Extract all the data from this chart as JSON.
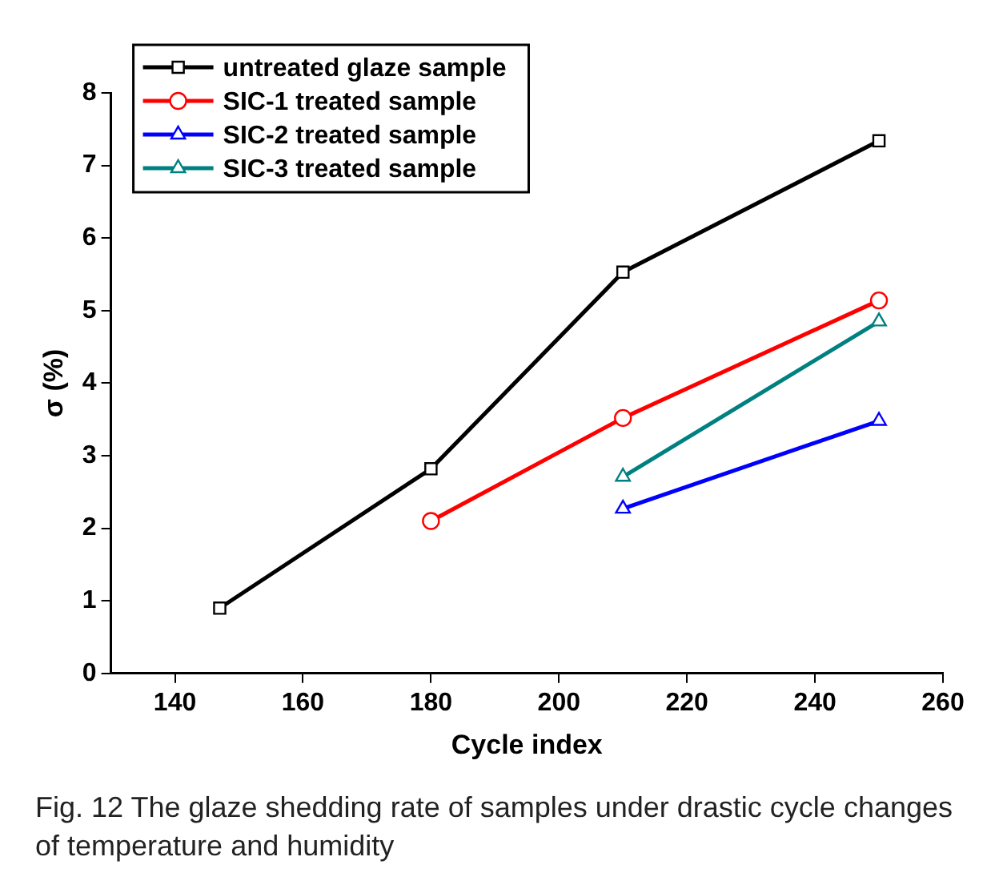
{
  "chart_data": {
    "type": "line",
    "xlabel": "Cycle index",
    "ylabel": "σ (%)",
    "xlim": [
      130,
      260
    ],
    "xticks": [
      140,
      160,
      180,
      200,
      220,
      240,
      260
    ],
    "ylim": [
      0,
      8
    ],
    "yticks": [
      0,
      1,
      2,
      3,
      4,
      5,
      6,
      7,
      8
    ],
    "legend": "top left",
    "grid": false,
    "series": [
      {
        "name": "untreated glaze sample",
        "color": "#000000",
        "marker": "square",
        "x": [
          147,
          180,
          210,
          250
        ],
        "values": [
          0.9,
          2.82,
          5.53,
          7.34
        ]
      },
      {
        "name": "SIC-1 treated sample",
        "color": "#ff0000",
        "marker": "circle",
        "x": [
          180,
          210,
          250
        ],
        "values": [
          2.1,
          3.52,
          5.14
        ]
      },
      {
        "name": "SIC-2 treated sample",
        "color": "#0000ff",
        "marker": "triangle",
        "x": [
          210,
          250
        ],
        "values": [
          2.27,
          3.48
        ]
      },
      {
        "name": "SIC-3 treated sample",
        "color": "#008080",
        "marker": "triangle",
        "x": [
          210,
          250
        ],
        "values": [
          2.71,
          4.85
        ]
      }
    ],
    "annotations": [
      "Fig. 12 The glaze shedding rate of samples under drastic cycle changes of temperature and humidity"
    ]
  }
}
